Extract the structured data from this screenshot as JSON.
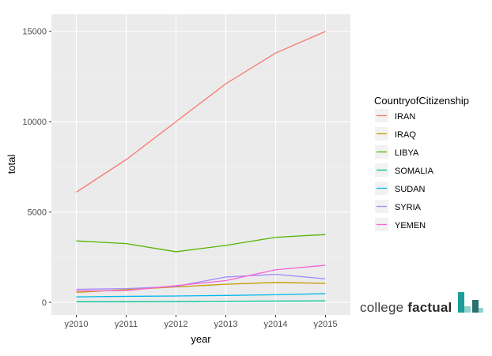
{
  "chart_data": {
    "type": "line",
    "title": "",
    "xlabel": "year",
    "ylabel": "total",
    "categories": [
      "y2010",
      "y2011",
      "y2012",
      "y2013",
      "y2014",
      "y2015"
    ],
    "ylim": [
      -700,
      15950
    ],
    "yticks": [
      0,
      5000,
      10000,
      15000
    ],
    "ytick_labels": [
      "0",
      "5000",
      "10000",
      "15000"
    ],
    "grid": true,
    "legend": {
      "title": "CountryofCitizenship",
      "placement": "right"
    },
    "series": [
      {
        "name": "IRAN",
        "color": "#F8766D",
        "values": [
          6100,
          7900,
          10000,
          12100,
          13800,
          15000
        ]
      },
      {
        "name": "IRAQ",
        "color": "#C49A00",
        "values": [
          550,
          700,
          850,
          1000,
          1100,
          1050
        ]
      },
      {
        "name": "LIBYA",
        "color": "#53B400",
        "values": [
          3400,
          3250,
          2800,
          3150,
          3600,
          3750
        ]
      },
      {
        "name": "SOMALIA",
        "color": "#00C094",
        "values": [
          30,
          30,
          40,
          60,
          70,
          80
        ]
      },
      {
        "name": "SUDAN",
        "color": "#00B6EB",
        "values": [
          300,
          330,
          350,
          380,
          420,
          480
        ]
      },
      {
        "name": "SYRIA",
        "color": "#A58AFF",
        "values": [
          720,
          760,
          880,
          1400,
          1550,
          1300
        ]
      },
      {
        "name": "YEMEN",
        "color": "#FB61D7",
        "values": [
          630,
          650,
          920,
          1200,
          1800,
          2050
        ]
      }
    ]
  },
  "branding": {
    "text_regular": "college ",
    "text_bold": "factual",
    "logo_icon": "bar-logo-icon",
    "logo_colors": [
      "#1a9e9a",
      "#2b6f6f",
      "#8fd3cf"
    ]
  }
}
